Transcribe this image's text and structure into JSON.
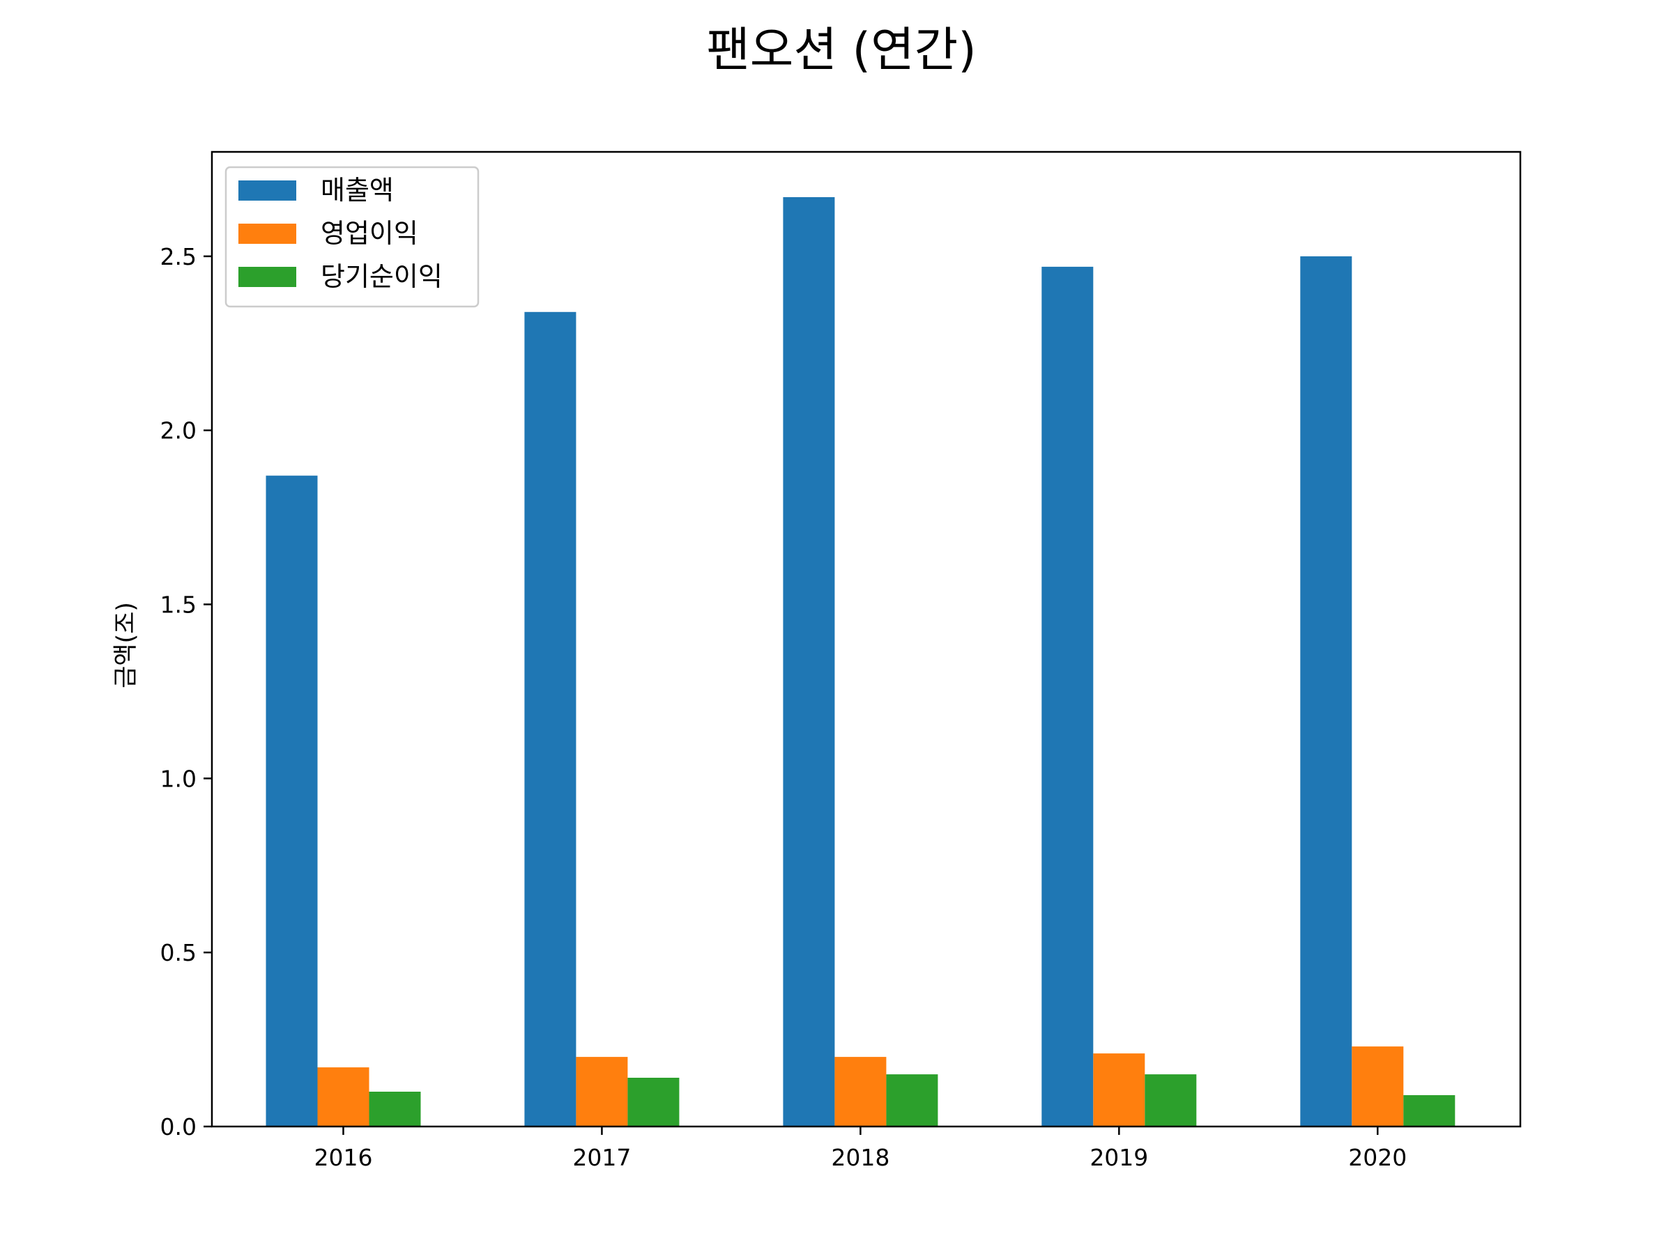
{
  "chart_data": {
    "type": "bar",
    "title": "팬오션 (연간)",
    "xlabel": "",
    "ylabel": "금액(조)",
    "categories": [
      "2016",
      "2017",
      "2018",
      "2019",
      "2020"
    ],
    "series": [
      {
        "name": "매출액",
        "values": [
          1.87,
          2.34,
          2.67,
          2.47,
          2.5
        ],
        "color": "#1f77b4"
      },
      {
        "name": "영업이익",
        "values": [
          0.17,
          0.2,
          0.2,
          0.21,
          0.23
        ],
        "color": "#ff7f0e"
      },
      {
        "name": "당기순이익",
        "values": [
          0.1,
          0.14,
          0.15,
          0.15,
          0.09
        ],
        "color": "#2ca02c"
      }
    ],
    "ylim": [
      0,
      2.8
    ],
    "yticks": [
      "0.0",
      "0.5",
      "1.0",
      "1.5",
      "2.0",
      "2.5"
    ],
    "grid": false,
    "legend_position": "top-left"
  }
}
